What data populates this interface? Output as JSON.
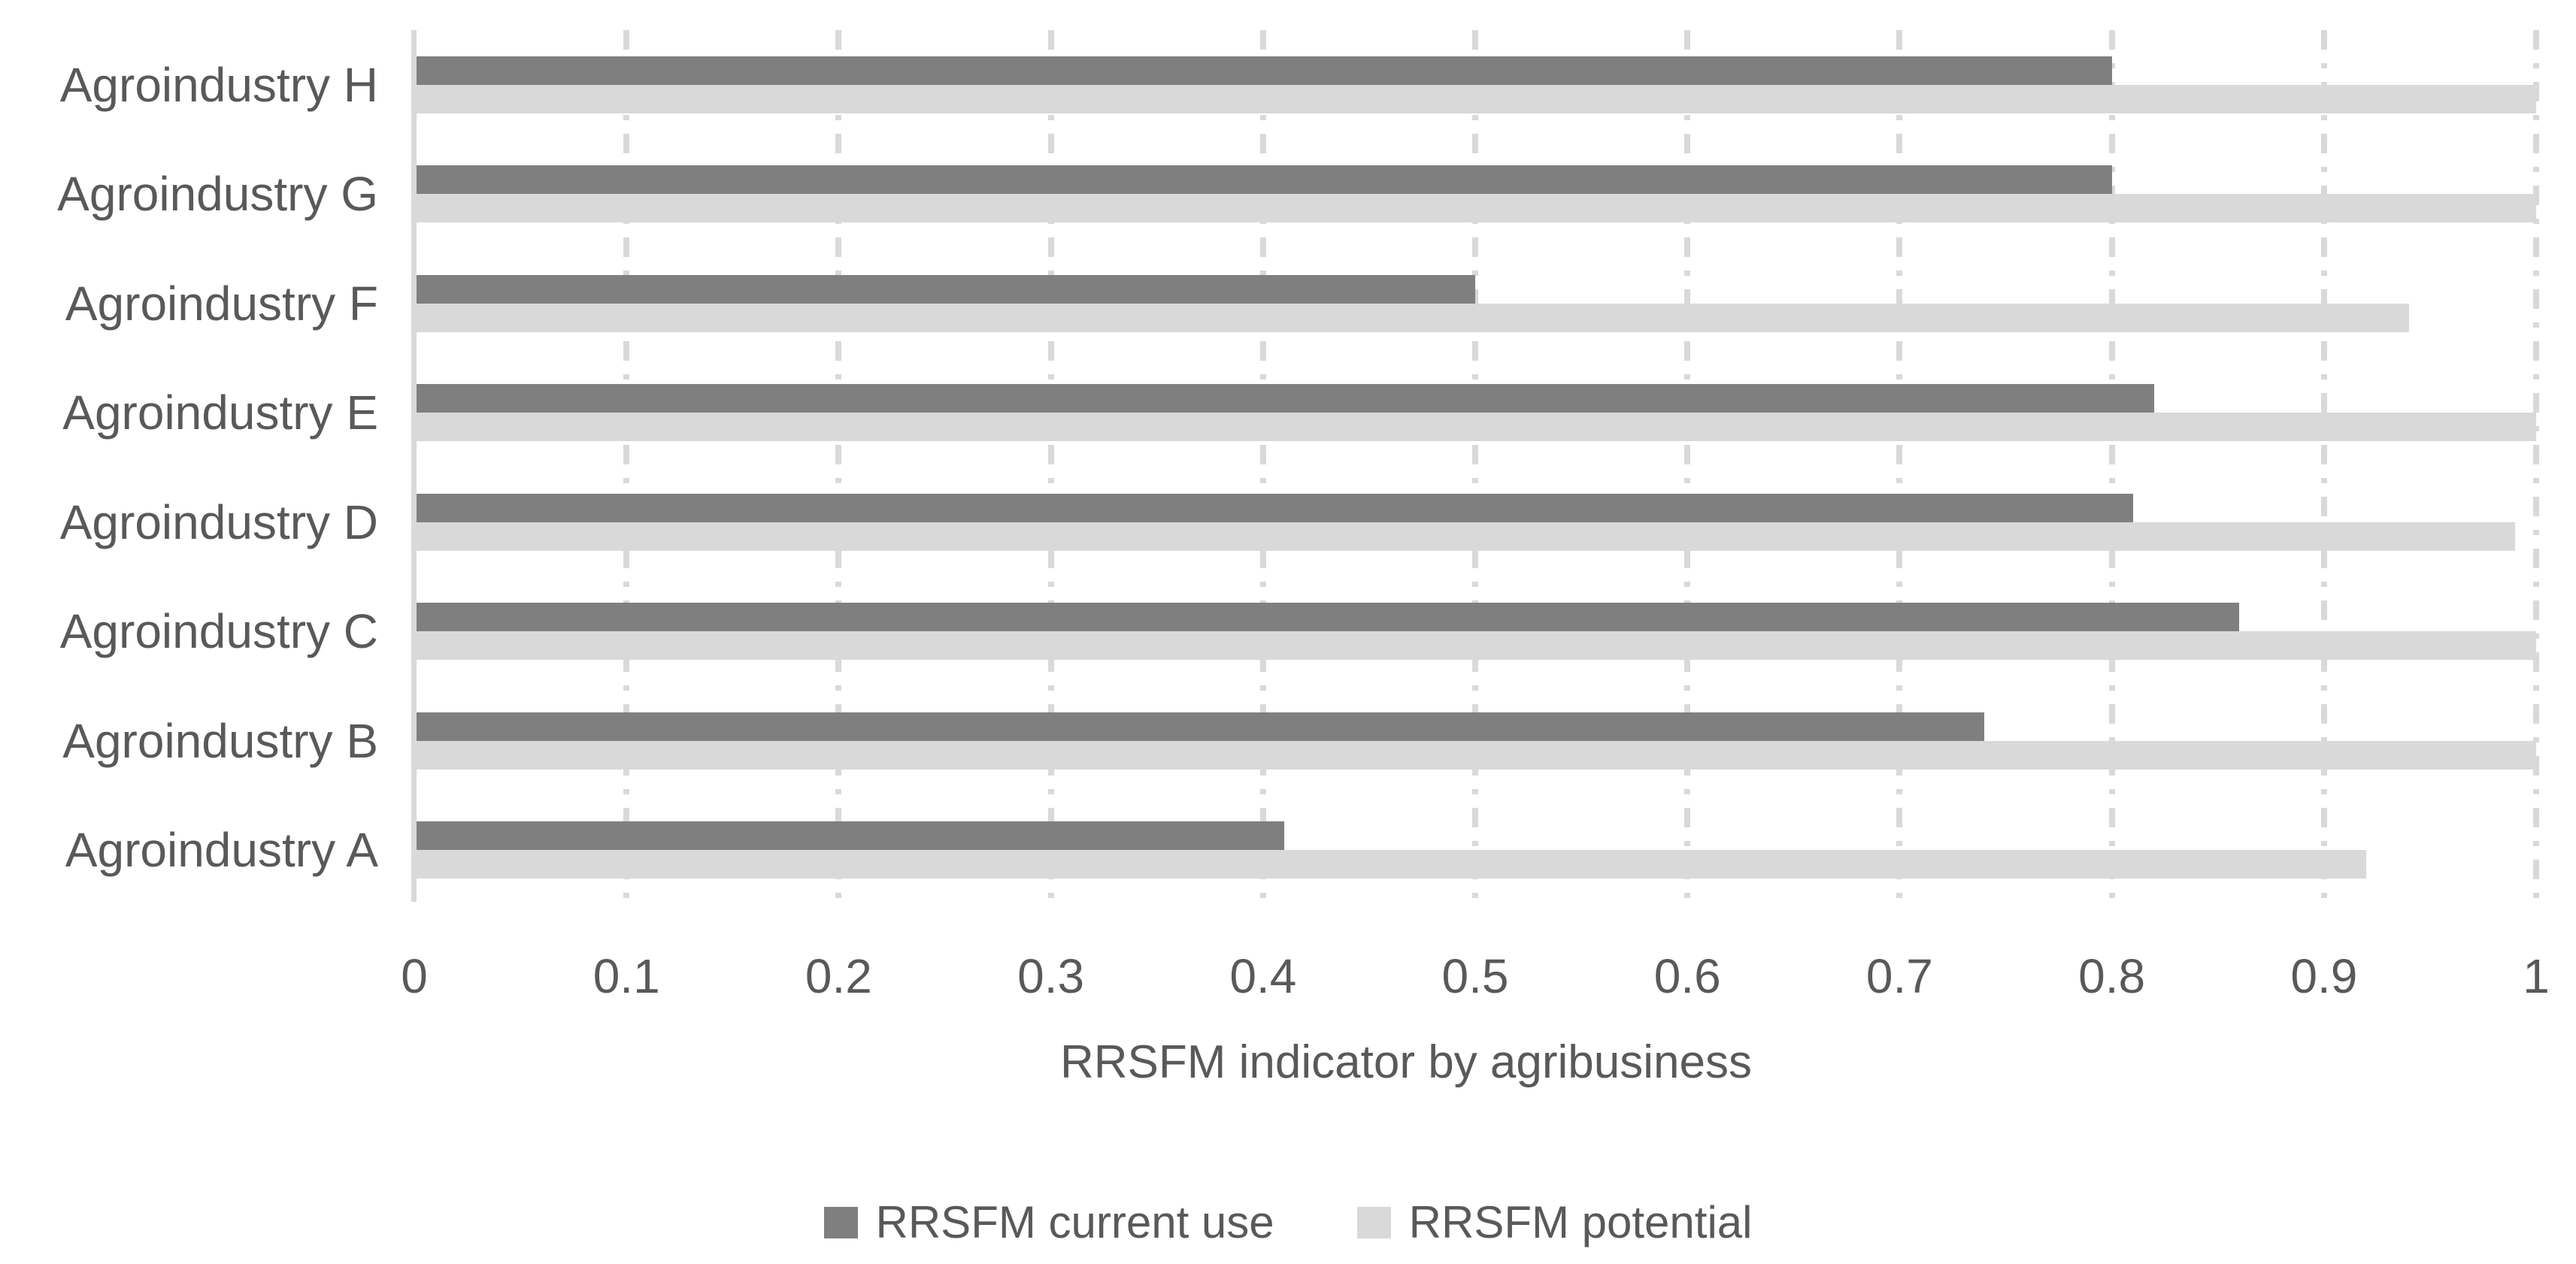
{
  "chart_data": {
    "type": "bar",
    "orientation": "horizontal",
    "row_order": "top-to-bottom",
    "categories": [
      "Agroindustry H",
      "Agroindustry G",
      "Agroindustry F",
      "Agroindustry E",
      "Agroindustry D",
      "Agroindustry C",
      "Agroindustry B",
      "Agroindustry A"
    ],
    "series": [
      {
        "name": "RRSFM current use",
        "color": "#7f7f7f",
        "values": [
          0.8,
          0.8,
          0.5,
          0.82,
          0.81,
          0.86,
          0.74,
          0.41
        ]
      },
      {
        "name": "RRSFM potential",
        "color": "#d9d9d9",
        "values": [
          1.0,
          1.0,
          0.94,
          1.0,
          0.99,
          1.0,
          1.0,
          0.92
        ]
      }
    ],
    "xlabel": "RRSFM indicator by agribusiness",
    "xlim": [
      0,
      1
    ],
    "xticks": [
      0,
      0.1,
      0.2,
      0.3,
      0.4,
      0.5,
      0.6,
      0.7,
      0.8,
      0.9,
      1
    ],
    "xtick_labels": [
      "0",
      "0.1",
      "0.2",
      "0.3",
      "0.4",
      "0.5",
      "0.6",
      "0.7",
      "0.8",
      "0.9",
      "1"
    ],
    "grid": "vertical-dashed",
    "legend_position": "bottom"
  },
  "colors": {
    "current_use": "#7f7f7f",
    "potential": "#d9d9d9",
    "gridline": "#d9d9d9",
    "axis_line": "#d9d9d9",
    "text": "#595959",
    "background": "#ffffff"
  }
}
